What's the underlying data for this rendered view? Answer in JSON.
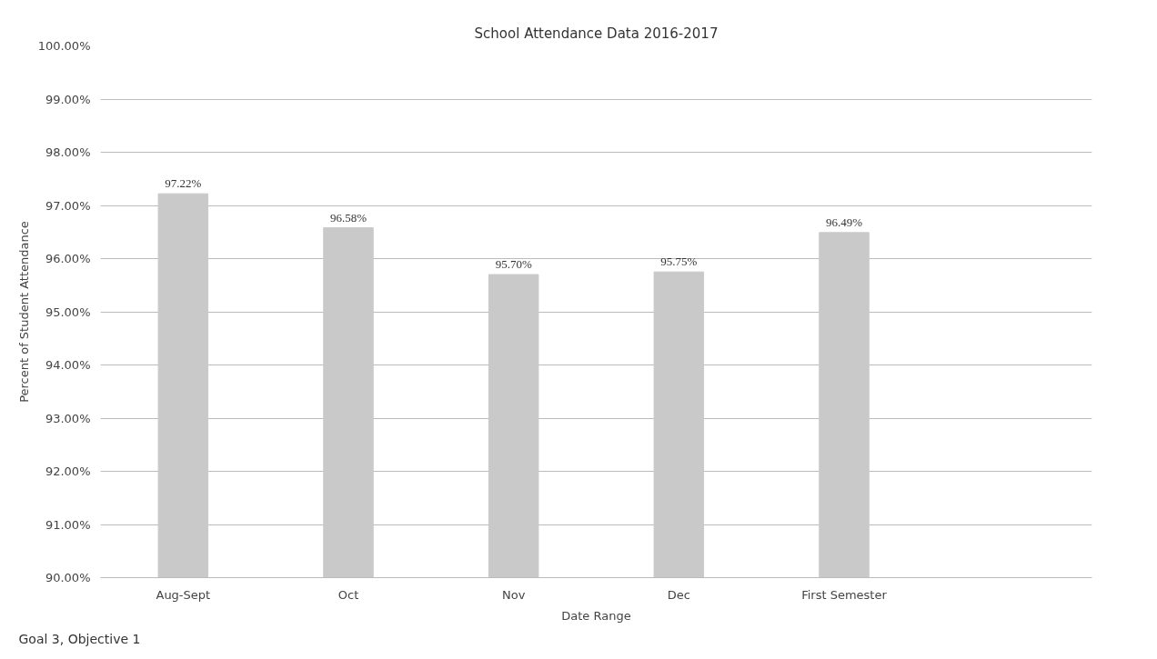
{
  "chart_data": {
    "type": "bar",
    "title": "School Attendance Data 2016-2017",
    "xlabel": "Date Range",
    "ylabel": "Percent of Student Attendance",
    "categories": [
      "Aug-Sept",
      "Oct",
      "Nov",
      "Dec",
      "First Semester",
      null
    ],
    "values": [
      97.22,
      96.58,
      95.7,
      95.75,
      96.49,
      null
    ],
    "value_labels": [
      "97.22%",
      "96.58%",
      "95.70%",
      "95.75%",
      "96.49%",
      null
    ],
    "color": "#c9c9c9",
    "ylim": [
      90,
      100
    ],
    "yticks": [
      {
        "value": 90,
        "label": "90.00%"
      },
      {
        "value": 91,
        "label": "91.00%"
      },
      {
        "value": 92,
        "label": "92.00%"
      },
      {
        "value": 93,
        "label": "93.00%"
      },
      {
        "value": 94,
        "label": "94.00%"
      },
      {
        "value": 95,
        "label": "95.00%"
      },
      {
        "value": 96,
        "label": "96.00%"
      },
      {
        "value": 97,
        "label": "97.00%"
      },
      {
        "value": 98,
        "label": "98.00%"
      },
      {
        "value": 99,
        "label": "99.00%"
      },
      {
        "value": 100,
        "label": "100.00%"
      }
    ],
    "grid": "y",
    "annotations": [
      "Goal 3, Objective 1"
    ]
  }
}
